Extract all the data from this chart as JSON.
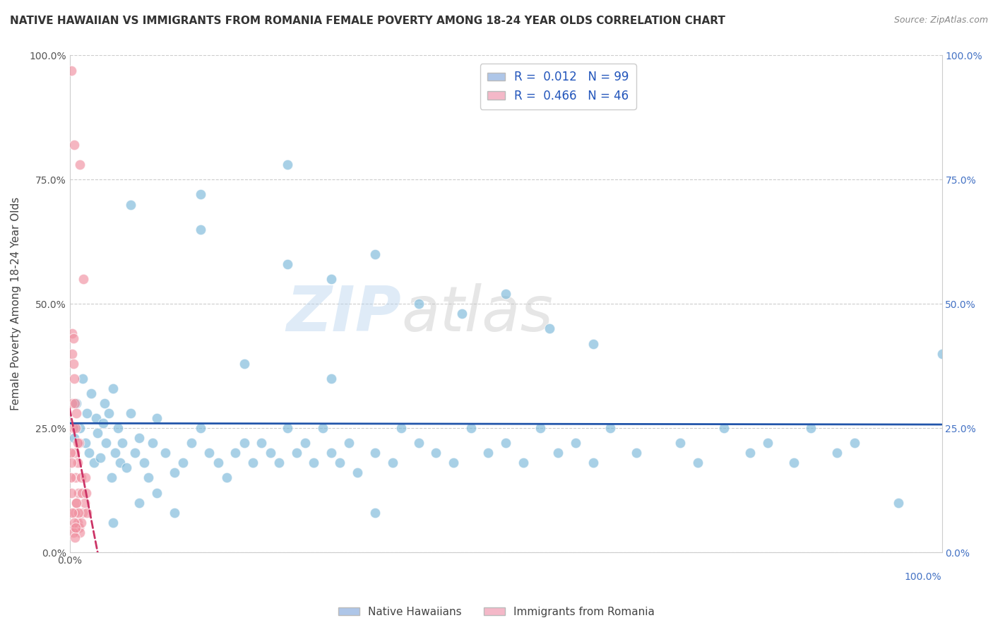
{
  "title": "NATIVE HAWAIIAN VS IMMIGRANTS FROM ROMANIA FEMALE POVERTY AMONG 18-24 YEAR OLDS CORRELATION CHART",
  "source": "Source: ZipAtlas.com",
  "ylabel": "Female Poverty Among 18-24 Year Olds",
  "y_tick_labels": [
    "0.0%",
    "25.0%",
    "50.0%",
    "75.0%",
    "100.0%"
  ],
  "y_tick_values": [
    0.0,
    0.25,
    0.5,
    0.75,
    1.0
  ],
  "legend_color1": "#aec6e8",
  "legend_color2": "#f4b8c8",
  "R1": 0.012,
  "N1": 99,
  "R2": 0.466,
  "N2": 46,
  "blue_color": "#7ab8d9",
  "pink_color": "#f090a0",
  "blue_line_color": "#2255aa",
  "pink_line_color": "#cc3366",
  "watermark_zip": "ZIP",
  "watermark_atlas": "atlas",
  "background_color": "#ffffff",
  "grid_color": "#cccccc",
  "xlim": [
    0.0,
    1.0
  ],
  "ylim": [
    0.0,
    1.0
  ],
  "blue_points_x": [
    0.005,
    0.008,
    0.012,
    0.015,
    0.018,
    0.02,
    0.022,
    0.025,
    0.028,
    0.03,
    0.032,
    0.035,
    0.038,
    0.04,
    0.042,
    0.045,
    0.048,
    0.05,
    0.052,
    0.055,
    0.058,
    0.06,
    0.065,
    0.07,
    0.075,
    0.08,
    0.085,
    0.09,
    0.095,
    0.1,
    0.11,
    0.12,
    0.13,
    0.14,
    0.15,
    0.16,
    0.17,
    0.18,
    0.19,
    0.2,
    0.21,
    0.22,
    0.23,
    0.24,
    0.25,
    0.26,
    0.27,
    0.28,
    0.29,
    0.3,
    0.31,
    0.32,
    0.33,
    0.35,
    0.37,
    0.38,
    0.4,
    0.42,
    0.44,
    0.46,
    0.48,
    0.5,
    0.52,
    0.54,
    0.56,
    0.58,
    0.6,
    0.62,
    0.65,
    0.7,
    0.72,
    0.75,
    0.78,
    0.8,
    0.83,
    0.85,
    0.88,
    0.9,
    0.95,
    1.0,
    0.07,
    0.15,
    0.25,
    0.3,
    0.35,
    0.4,
    0.45,
    0.5,
    0.55,
    0.6,
    0.2,
    0.3,
    0.25,
    0.15,
    0.35,
    0.1,
    0.05,
    0.08,
    0.12
  ],
  "blue_points_y": [
    0.23,
    0.3,
    0.25,
    0.35,
    0.22,
    0.28,
    0.2,
    0.32,
    0.18,
    0.27,
    0.24,
    0.19,
    0.26,
    0.3,
    0.22,
    0.28,
    0.15,
    0.33,
    0.2,
    0.25,
    0.18,
    0.22,
    0.17,
    0.28,
    0.2,
    0.23,
    0.18,
    0.15,
    0.22,
    0.27,
    0.2,
    0.16,
    0.18,
    0.22,
    0.25,
    0.2,
    0.18,
    0.15,
    0.2,
    0.22,
    0.18,
    0.22,
    0.2,
    0.18,
    0.25,
    0.2,
    0.22,
    0.18,
    0.25,
    0.2,
    0.18,
    0.22,
    0.16,
    0.2,
    0.18,
    0.25,
    0.22,
    0.2,
    0.18,
    0.25,
    0.2,
    0.22,
    0.18,
    0.25,
    0.2,
    0.22,
    0.18,
    0.25,
    0.2,
    0.22,
    0.18,
    0.25,
    0.2,
    0.22,
    0.18,
    0.25,
    0.2,
    0.22,
    0.1,
    0.4,
    0.7,
    0.65,
    0.58,
    0.55,
    0.6,
    0.5,
    0.48,
    0.52,
    0.45,
    0.42,
    0.38,
    0.35,
    0.78,
    0.72,
    0.08,
    0.12,
    0.06,
    0.1,
    0.08
  ],
  "pink_points_x": [
    0.002,
    0.003,
    0.004,
    0.005,
    0.006,
    0.007,
    0.008,
    0.009,
    0.01,
    0.011,
    0.012,
    0.013,
    0.014,
    0.015,
    0.016,
    0.017,
    0.018,
    0.019,
    0.02,
    0.001,
    0.002,
    0.003,
    0.004,
    0.005,
    0.006,
    0.007,
    0.008,
    0.009,
    0.003,
    0.004,
    0.005,
    0.006,
    0.007,
    0.008,
    0.009,
    0.01,
    0.011,
    0.012,
    0.013,
    0.001,
    0.002,
    0.003,
    0.004,
    0.005,
    0.006,
    0.007
  ],
  "pink_points_y": [
    0.97,
    0.3,
    0.25,
    0.82,
    0.2,
    0.15,
    0.1,
    0.18,
    0.12,
    0.22,
    0.78,
    0.15,
    0.12,
    0.08,
    0.55,
    0.1,
    0.15,
    0.12,
    0.08,
    0.2,
    0.18,
    0.44,
    0.43,
    0.35,
    0.3,
    0.25,
    0.28,
    0.22,
    0.4,
    0.38,
    0.05,
    0.08,
    0.05,
    0.1,
    0.06,
    0.08,
    0.05,
    0.04,
    0.06,
    0.15,
    0.12,
    0.08,
    0.04,
    0.06,
    0.03,
    0.05
  ]
}
